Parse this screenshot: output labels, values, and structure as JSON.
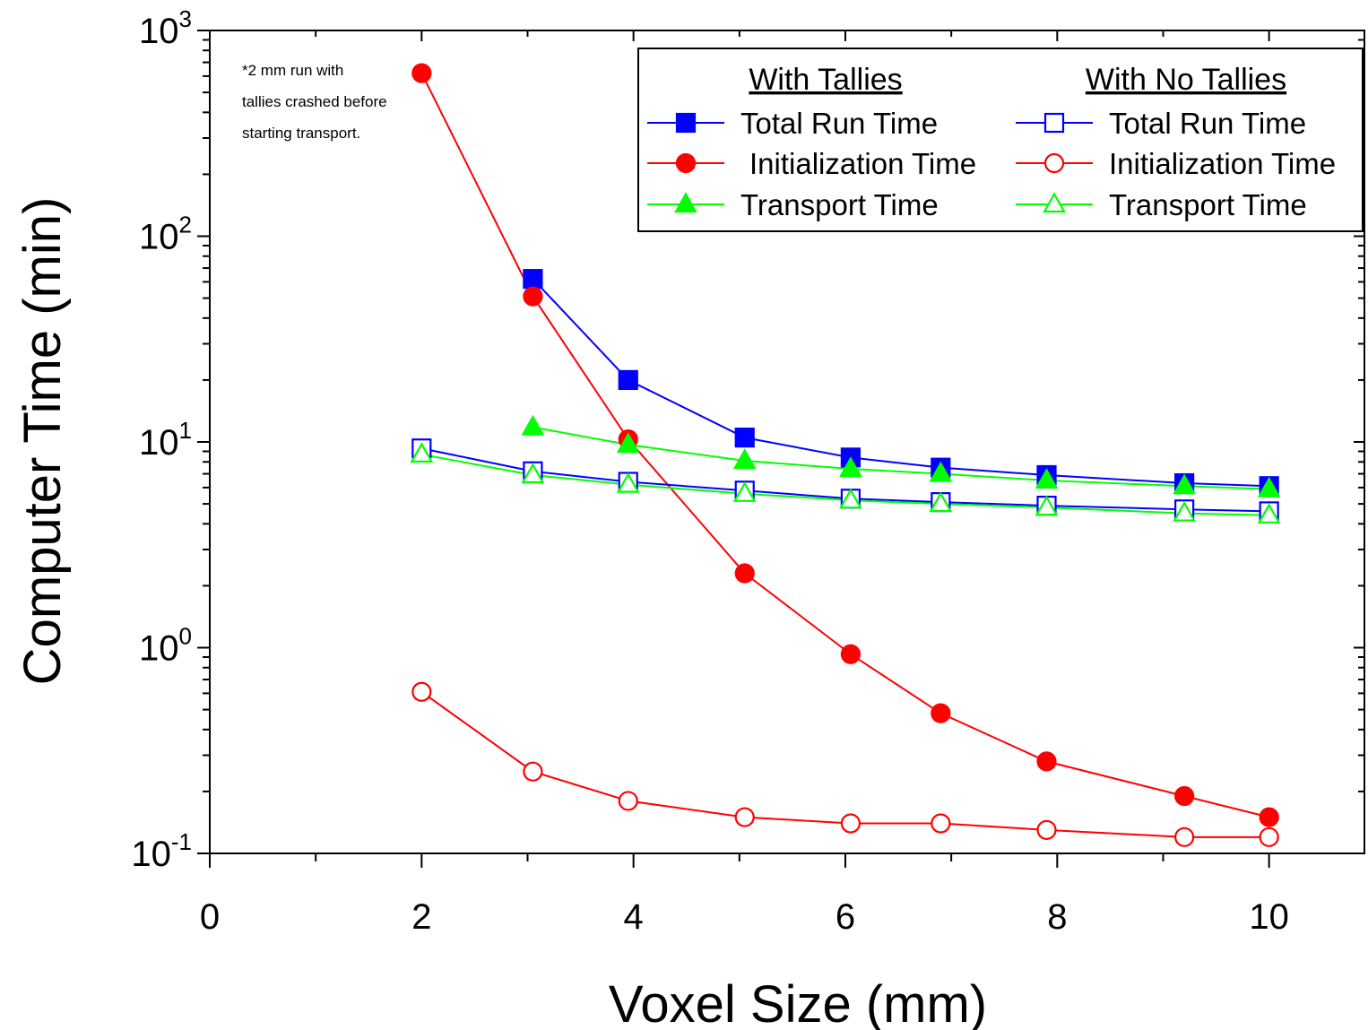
{
  "chart_data": {
    "type": "line",
    "title": "",
    "xlabel": "Voxel Size (mm)",
    "ylabel": "Computer Time (min)",
    "xlim": [
      0,
      10.9
    ],
    "ylim": [
      0.1,
      1000
    ],
    "yscale": "log",
    "x_ticks": [
      0,
      2,
      4,
      6,
      8,
      10
    ],
    "y_ticks": [
      {
        "value": 0.1,
        "base": "10",
        "exp": "-1"
      },
      {
        "value": 1,
        "base": "10",
        "exp": "0"
      },
      {
        "value": 10,
        "base": "10",
        "exp": "1"
      },
      {
        "value": 100,
        "base": "10",
        "exp": "2"
      },
      {
        "value": 1000,
        "base": "10",
        "exp": "3"
      }
    ],
    "grid": false,
    "legend": {
      "placement": "top-right",
      "group_headers": [
        "With Tallies",
        "With No Tallies"
      ]
    },
    "annotation": [
      "*2 mm run with",
      "tallies crashed before",
      "starting transport."
    ],
    "series": [
      {
        "name": "Total Run Time",
        "group": "With Tallies",
        "color": "#0000ff",
        "marker": "square",
        "filled": true,
        "x": [
          3.05,
          3.95,
          5.05,
          6.05,
          6.9,
          7.9,
          9.2,
          10.0
        ],
        "y": [
          62,
          20,
          10.5,
          8.4,
          7.5,
          6.9,
          6.3,
          6.1
        ]
      },
      {
        "name": "Initialization Time",
        "group": "With Tallies",
        "color": "#ff0000",
        "marker": "circle",
        "filled": true,
        "x": [
          2.0,
          3.05,
          3.95,
          5.05,
          6.05,
          6.9,
          7.9,
          9.2,
          10.0
        ],
        "y": [
          620,
          51,
          10.3,
          2.3,
          0.93,
          0.48,
          0.28,
          0.19,
          0.15
        ]
      },
      {
        "name": "Transport Time",
        "group": "With Tallies",
        "color": "#00ff00",
        "marker": "triangle",
        "filled": true,
        "x": [
          3.05,
          3.95,
          5.05,
          6.05,
          6.9,
          7.9,
          9.2,
          10.0
        ],
        "y": [
          11.8,
          9.7,
          8.1,
          7.4,
          7.0,
          6.5,
          6.1,
          5.9
        ]
      },
      {
        "name": "Total Run Time",
        "group": "With No Tallies",
        "color": "#0000ff",
        "marker": "square",
        "filled": false,
        "x": [
          2.0,
          3.05,
          3.95,
          5.05,
          6.05,
          6.9,
          7.9,
          9.2,
          10.0
        ],
        "y": [
          9.3,
          7.2,
          6.4,
          5.8,
          5.3,
          5.1,
          4.9,
          4.7,
          4.6
        ]
      },
      {
        "name": "Initialization Time",
        "group": "With No Tallies",
        "color": "#ff0000",
        "marker": "circle",
        "filled": false,
        "x": [
          2.0,
          3.05,
          3.95,
          5.05,
          6.05,
          6.9,
          7.9,
          9.2,
          10.0
        ],
        "y": [
          0.61,
          0.25,
          0.18,
          0.15,
          0.14,
          0.14,
          0.13,
          0.12,
          0.12
        ]
      },
      {
        "name": "Transport Time",
        "group": "With No Tallies",
        "color": "#00ff00",
        "marker": "triangle",
        "filled": false,
        "x": [
          2.0,
          3.05,
          3.95,
          5.05,
          6.05,
          6.9,
          7.9,
          9.2,
          10.0
        ],
        "y": [
          8.7,
          6.9,
          6.2,
          5.6,
          5.2,
          5.0,
          4.8,
          4.5,
          4.4
        ]
      }
    ]
  }
}
